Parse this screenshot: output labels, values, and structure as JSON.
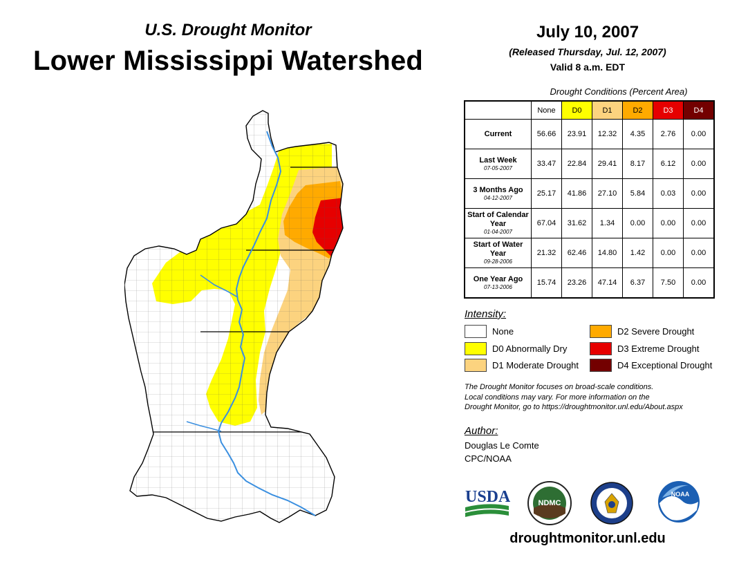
{
  "header": {
    "subtitle": "U.S. Drought Monitor",
    "title": "Lower Mississippi Watershed",
    "date": "July 10, 2007",
    "released": "(Released Thursday, Jul. 12, 2007)",
    "valid": "Valid 8 a.m. EDT"
  },
  "table": {
    "caption": "Drought Conditions (Percent Area)",
    "columns": [
      "None",
      "D0",
      "D1",
      "D2",
      "D3",
      "D4"
    ],
    "column_colors": [
      "#ffffff",
      "#ffff00",
      "#fcd37f",
      "#ffaa00",
      "#e60000",
      "#730000"
    ],
    "rows": [
      {
        "label": "Current",
        "date": "",
        "values": [
          "56.66",
          "23.91",
          "12.32",
          "4.35",
          "2.76",
          "0.00"
        ]
      },
      {
        "label": "Last Week",
        "date": "07-05-2007",
        "values": [
          "33.47",
          "22.84",
          "29.41",
          "8.17",
          "6.12",
          "0.00"
        ]
      },
      {
        "label": "3 Months Ago",
        "date": "04-12-2007",
        "values": [
          "25.17",
          "41.86",
          "27.10",
          "5.84",
          "0.03",
          "0.00"
        ]
      },
      {
        "label": "Start of Calendar Year",
        "date": "01-04-2007",
        "values": [
          "67.04",
          "31.62",
          "1.34",
          "0.00",
          "0.00",
          "0.00"
        ]
      },
      {
        "label": "Start of Water Year",
        "date": "09-28-2006",
        "values": [
          "21.32",
          "62.46",
          "14.80",
          "1.42",
          "0.00",
          "0.00"
        ]
      },
      {
        "label": "One Year Ago",
        "date": "07-13-2006",
        "values": [
          "15.74",
          "23.26",
          "47.14",
          "6.37",
          "7.50",
          "0.00"
        ]
      }
    ]
  },
  "legend": {
    "title": "Intensity:",
    "items": [
      {
        "label": "None",
        "color": "#ffffff"
      },
      {
        "label": "D0 Abnormally Dry",
        "color": "#ffff00"
      },
      {
        "label": "D1 Moderate Drought",
        "color": "#fcd37f"
      },
      {
        "label": "D2 Severe Drought",
        "color": "#ffaa00"
      },
      {
        "label": "D3 Extreme Drought",
        "color": "#e60000"
      },
      {
        "label": "D4 Exceptional Drought",
        "color": "#730000"
      }
    ]
  },
  "note": {
    "line1": "The Drought Monitor focuses on broad-scale conditions.",
    "line2": "Local conditions may vary. For more information on the",
    "line3": "Drought Monitor, go to https://droughtmonitor.unl.edu/About.aspx"
  },
  "author": {
    "title": "Author:",
    "name": "Douglas Le Comte",
    "org": "CPC/NOAA"
  },
  "logos": {
    "usda": "USDA",
    "ndmc": "NDMC",
    "noaa": "NOAA"
  },
  "website": "droughtmonitor.unl.edu",
  "map": {
    "river_color": "#3a8fe0"
  }
}
